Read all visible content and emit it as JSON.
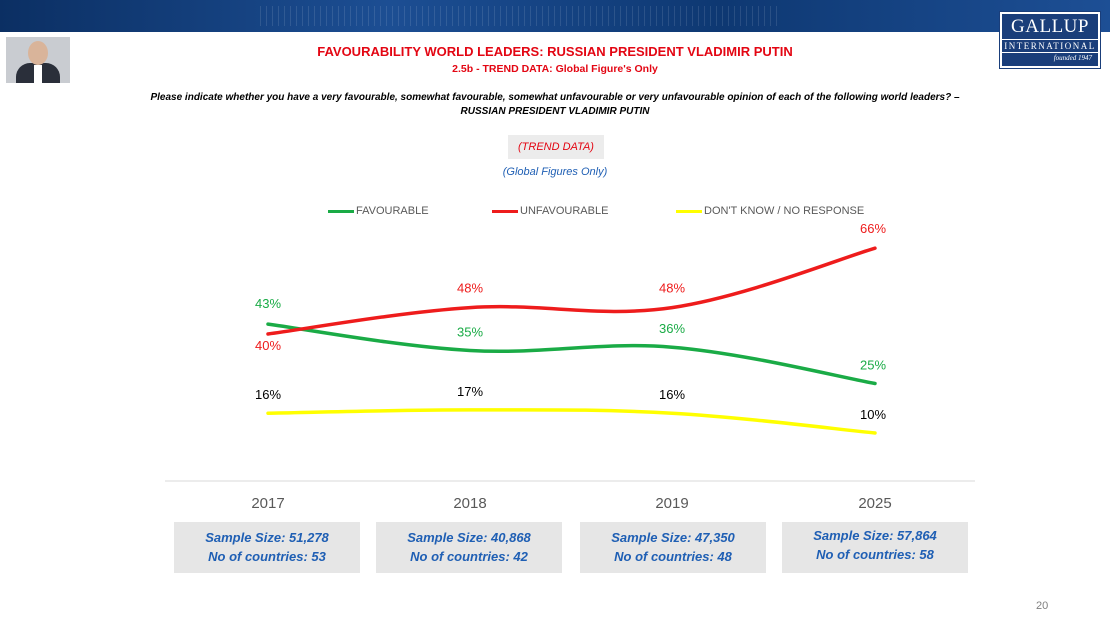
{
  "header": {
    "title": "FAVOURABILITY WORLD LEADERS: RUSSIAN PRESIDENT VLADIMIR PUTIN",
    "subtitle": "2.5b - TREND DATA: Global Figure's Only",
    "question_line1": "Please indicate whether you have a very favourable, somewhat favourable, somewhat unfavourable or very unfavourable opinion of each of the following world leaders? –",
    "question_line2": "RUSSIAN PRESIDENT VLADIMIR PUTIN",
    "trend_label": "(TREND DATA)",
    "global_label": "(Global Figures Only)"
  },
  "logo": {
    "name": "GALLUP",
    "subtitle": "INTERNATIONAL",
    "founded": "founded 1947"
  },
  "colors": {
    "favourable": "#1aab46",
    "unfavourable": "#ee1c1c",
    "dont_know": "#ffff00",
    "title_red": "#e30613",
    "sample_blue": "#1f5fb4"
  },
  "chart_data": {
    "type": "line",
    "categories": [
      "2017",
      "2018",
      "2019",
      "2025"
    ],
    "series": [
      {
        "name": "FAVOURABLE",
        "values": [
          43,
          35,
          36,
          25
        ],
        "labels": [
          "43%",
          "35%",
          "36%",
          "25%"
        ]
      },
      {
        "name": "UNFAVOURABLE",
        "values": [
          40,
          48,
          48,
          66
        ],
        "labels": [
          "40%",
          "48%",
          "48%",
          "66%"
        ]
      },
      {
        "name": "DON'T KNOW / NO RESPONSE",
        "values": [
          16,
          17,
          16,
          10
        ],
        "labels": [
          "16%",
          "17%",
          "16%",
          "10%"
        ]
      }
    ],
    "title": "FAVOURABILITY WORLD LEADERS: RUSSIAN PRESIDENT VLADIMIR PUTIN",
    "xlabel": "",
    "ylabel": "",
    "ylim": [
      0,
      75
    ],
    "legend_position": "top",
    "grid": false
  },
  "samples": [
    {
      "size": "Sample Size: 51,278",
      "countries": "No of countries:  53"
    },
    {
      "size": "Sample Size: 40,868",
      "countries": "No of countries: 42"
    },
    {
      "size": "Sample Size: 47,350",
      "countries": "No of countries: 48"
    },
    {
      "size": "Sample Size: 57,864",
      "countries": "No of countries: 58"
    }
  ],
  "page_number": "20"
}
